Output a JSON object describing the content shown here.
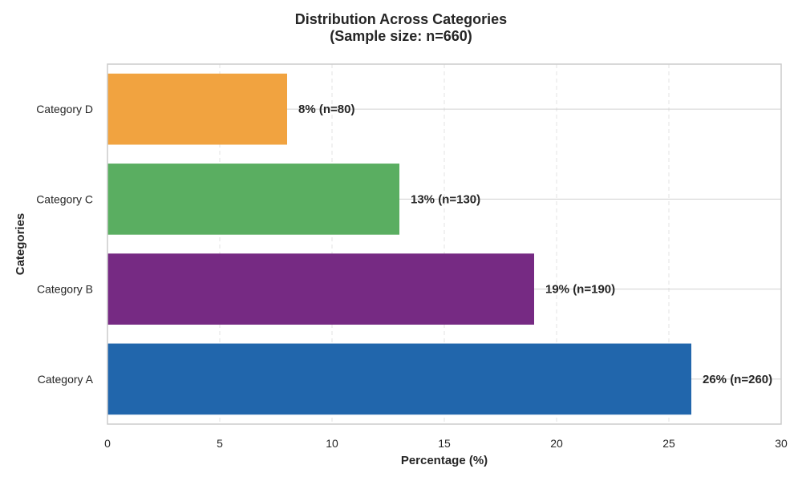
{
  "chart_data": {
    "type": "bar",
    "orientation": "horizontal",
    "title": "Distribution Across Categories",
    "subtitle": "(Sample size: n=660)",
    "xlabel": "Percentage (%)",
    "ylabel": "Categories",
    "xlim": [
      0,
      30
    ],
    "x_ticks": [
      "0",
      "5",
      "10",
      "15",
      "20",
      "25",
      "30"
    ],
    "categories": [
      "Category A",
      "Category B",
      "Category C",
      "Category D"
    ],
    "values": [
      26,
      19,
      13,
      8
    ],
    "counts": [
      260,
      190,
      130,
      80
    ],
    "data_labels": [
      "26% (n=260)",
      "19% (n=190)",
      "13% (n=130)",
      "8% (n=80)"
    ],
    "colors": [
      "#2166ac",
      "#762a83",
      "#5aae61",
      "#f1a340"
    ],
    "grid": true,
    "legend": "none"
  }
}
